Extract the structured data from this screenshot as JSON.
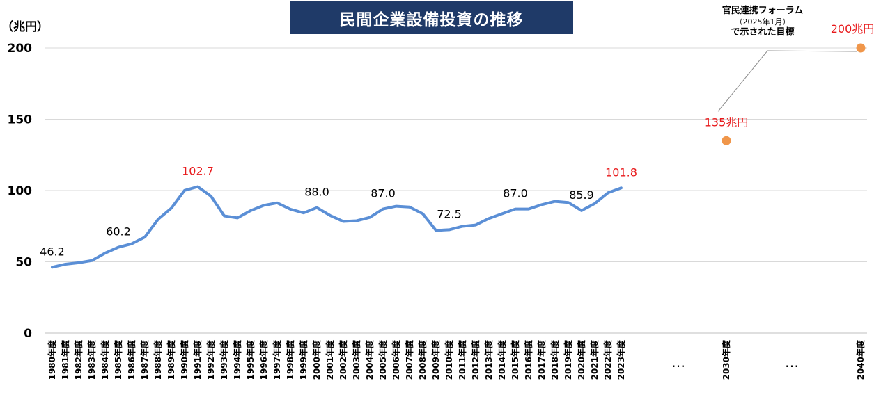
{
  "title": "民間企業設備投資の推移",
  "unit": "（兆円）",
  "annotation": {
    "line1": "官民連携フォーラム",
    "line2": "（2025年1月）",
    "line3": "で示された目標"
  },
  "colors": {
    "line": "#5b8fd6",
    "target": "#f0964a",
    "highlight_label": "#e8191b",
    "normal_label": "#000000",
    "grid": "#d9d9d9",
    "title_bg": "#1f3a68"
  },
  "chart_data": {
    "type": "line",
    "ylim": [
      0,
      200
    ],
    "yticks": [
      0,
      50,
      100,
      150,
      200
    ],
    "grid": true,
    "ellipsis": [
      "…",
      "…"
    ],
    "series": [
      {
        "x": [
          "1980年度",
          "1981年度",
          "1982年度",
          "1983年度",
          "1984年度",
          "1985年度",
          "1986年度",
          "1987年度",
          "1988年度",
          "1989年度",
          "1990年度",
          "1991年度",
          "1992年度",
          "1993年度",
          "1994年度",
          "1995年度",
          "1996年度",
          "1997年度",
          "1998年度",
          "1999年度",
          "2000年度",
          "2001年度",
          "2002年度",
          "2003年度",
          "2004年度",
          "2005年度",
          "2006年度",
          "2007年度",
          "2008年度",
          "2009年度",
          "2010年度",
          "2011年度",
          "2012年度",
          "2013年度",
          "2014年度",
          "2015年度",
          "2016年度",
          "2017年度",
          "2018年度",
          "2019年度",
          "2020年度",
          "2021年度",
          "2022年度",
          "2023年度"
        ],
        "values": [
          46.2,
          48.3,
          49.3,
          50.9,
          56.1,
          60.2,
          62.6,
          67.3,
          79.8,
          87.6,
          100.1,
          102.7,
          96.0,
          82.2,
          80.8,
          85.9,
          89.6,
          91.3,
          86.9,
          84.3,
          88.0,
          82.5,
          78.3,
          78.8,
          81.1,
          87.0,
          89.0,
          88.4,
          83.7,
          72.0,
          72.5,
          74.9,
          75.8,
          80.4,
          83.7,
          87.0,
          87.0,
          90.1,
          92.4,
          91.6,
          85.9,
          90.9,
          98.4,
          101.8
        ]
      }
    ],
    "targets": [
      {
        "x": "2030年度",
        "value": 135,
        "label": "135兆円"
      },
      {
        "x": "2040年度",
        "value": 200,
        "label": "200兆円"
      }
    ],
    "data_labels": [
      {
        "x": "1980年度",
        "text": "46.2",
        "highlight": false
      },
      {
        "x": "1985年度",
        "text": "60.2",
        "highlight": false
      },
      {
        "x": "1991年度",
        "text": "102.7",
        "highlight": true
      },
      {
        "x": "2000年度",
        "text": "88.0",
        "highlight": false
      },
      {
        "x": "2005年度",
        "text": "87.0",
        "highlight": false
      },
      {
        "x": "2010年度",
        "text": "72.5",
        "highlight": false
      },
      {
        "x": "2015年度",
        "text": "87.0",
        "highlight": false
      },
      {
        "x": "2020年度",
        "text": "85.9",
        "highlight": false
      },
      {
        "x": "2023年度",
        "text": "101.8",
        "highlight": true
      }
    ]
  }
}
